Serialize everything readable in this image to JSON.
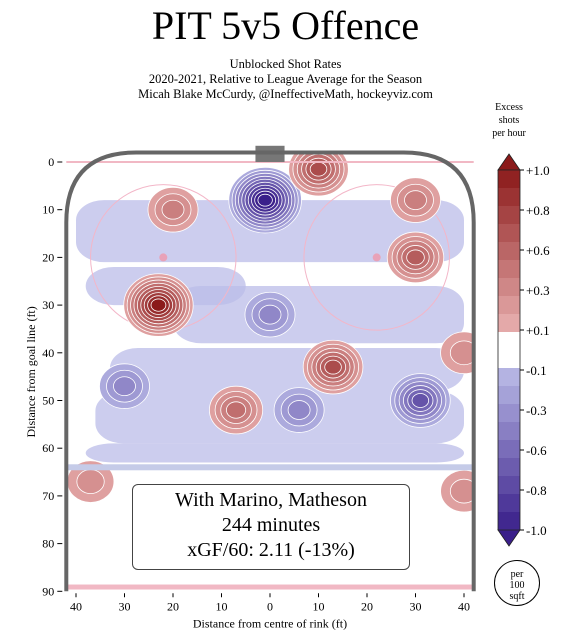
{
  "title": "PIT 5v5 Offence",
  "subtitle_lines": [
    "Unblocked Shot Rates",
    "2020-2021, Relative to League Average for the Season",
    "Micah Blake McCurdy, @IneffectiveMath, hockeyviz.com"
  ],
  "info_box": {
    "line1": "With Marino, Matheson",
    "line2": "244 minutes",
    "line3": "xGF/60: 2.11 (-13%)"
  },
  "scale_circle": {
    "line1": "per",
    "line2": "100",
    "line3": "sqft"
  },
  "colors": {
    "positive_dark": "#8b1a1a",
    "positive_light": "#f4c2c2",
    "negative_dark": "#3a1f8a",
    "negative_light": "#c9cdf2",
    "rink_border": "#666666",
    "goal_line": "#f1b8c4",
    "blue_line": "#c5cbe8"
  },
  "chart_data": {
    "type": "heatmap",
    "xlabel": "Distance from centre of rink (ft)",
    "ylabel": "Distance from goal line (ft)",
    "xlim": [
      -42,
      42
    ],
    "ylim": [
      -2,
      90
    ],
    "x_ticks": [
      40,
      30,
      20,
      10,
      0,
      10,
      20,
      30,
      40
    ],
    "x_tick_values": [
      -40,
      -30,
      -20,
      -10,
      0,
      10,
      20,
      30,
      40
    ],
    "y_ticks": [
      0,
      10,
      20,
      30,
      40,
      50,
      60,
      70,
      80,
      90
    ],
    "colorbar": {
      "title_lines": [
        "Excess",
        "shots",
        "per hour"
      ],
      "tick_labels": [
        "+1.0",
        "+0.8",
        "+0.6",
        "+0.3",
        "+0.1",
        "-0.1",
        "-0.3",
        "-0.6",
        "-0.8",
        "-1.0"
      ],
      "tick_values": [
        1.0,
        0.8,
        0.6,
        0.3,
        0.1,
        -0.1,
        -0.3,
        -0.6,
        -0.8,
        -1.0
      ]
    },
    "hotspots": [
      {
        "x": -1,
        "y": 8,
        "value": -1.0
      },
      {
        "x": 10,
        "y": 1.5,
        "value": 0.6
      },
      {
        "x": -23,
        "y": 30,
        "value": 0.9
      },
      {
        "x": -20,
        "y": 10,
        "value": 0.3
      },
      {
        "x": 30,
        "y": 20,
        "value": 0.5
      },
      {
        "x": 30,
        "y": 8,
        "value": 0.3
      },
      {
        "x": 13,
        "y": 43,
        "value": 0.6
      },
      {
        "x": -7,
        "y": 52,
        "value": 0.4
      },
      {
        "x": 6,
        "y": 52,
        "value": -0.3
      },
      {
        "x": 31,
        "y": 50,
        "value": -0.6
      },
      {
        "x": 0,
        "y": 32,
        "value": -0.3
      },
      {
        "x": -30,
        "y": 47,
        "value": -0.3
      },
      {
        "x": 40,
        "y": 40,
        "value": 0.2
      },
      {
        "x": -37,
        "y": 67,
        "value": 0.2
      },
      {
        "x": 40,
        "y": 69,
        "value": 0.2
      }
    ]
  }
}
